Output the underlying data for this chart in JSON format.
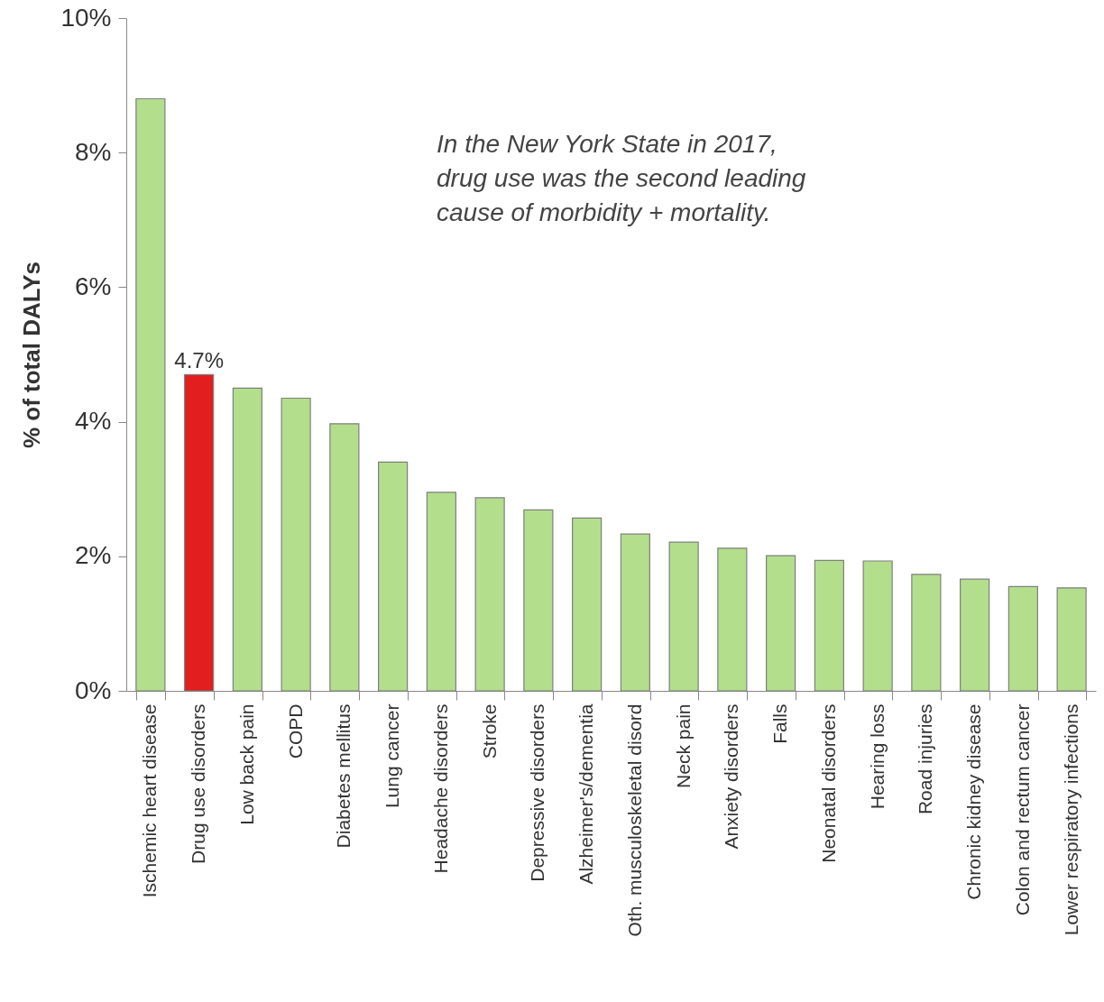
{
  "chart_data": {
    "type": "bar",
    "ylabel": "% of total DALYs",
    "categories": [
      "Ischemic heart disease",
      "Drug use disorders",
      "Low back pain",
      "COPD",
      "Diabetes mellitus",
      "Lung cancer",
      "Headache disorders",
      "Stroke",
      "Depressive disorders",
      "Alzheimer's/dementia",
      "Oth. musculoskeletal disord",
      "Neck pain",
      "Anxiety disorders",
      "Falls",
      "Neonatal disorders",
      "Hearing loss",
      "Road injuries",
      "Chronic kidney disease",
      "Colon and rectum cancer",
      "Lower respiratory infections"
    ],
    "values": [
      8.8,
      4.7,
      4.5,
      4.35,
      3.97,
      3.4,
      2.95,
      2.87,
      2.69,
      2.57,
      2.33,
      2.21,
      2.12,
      2.01,
      1.94,
      1.93,
      1.73,
      1.66,
      1.55,
      1.53
    ],
    "colors": [
      "#b3de8c",
      "#e31e1e",
      "#b3de8c",
      "#b3de8c",
      "#b3de8c",
      "#b3de8c",
      "#b3de8c",
      "#b3de8c",
      "#b3de8c",
      "#b3de8c",
      "#b3de8c",
      "#b3de8c",
      "#b3de8c",
      "#b3de8c",
      "#b3de8c",
      "#b3de8c",
      "#b3de8c",
      "#b3de8c",
      "#b3de8c",
      "#b3de8c"
    ],
    "value_labels": [
      null,
      "4.7%",
      null,
      null,
      null,
      null,
      null,
      null,
      null,
      null,
      null,
      null,
      null,
      null,
      null,
      null,
      null,
      null,
      null,
      null
    ],
    "ylim": [
      0,
      10
    ],
    "yticks": [
      {
        "value": 0,
        "label": "0%"
      },
      {
        "value": 2,
        "label": "2%"
      },
      {
        "value": 4,
        "label": "4%"
      },
      {
        "value": 6,
        "label": "6%"
      },
      {
        "value": 8,
        "label": "8%"
      },
      {
        "value": 10,
        "label": "10%"
      }
    ],
    "grid": false,
    "annotations": [
      "In the New York State in 2017,\ndrug use was the second leading\ncause of morbidity + mortality."
    ]
  }
}
